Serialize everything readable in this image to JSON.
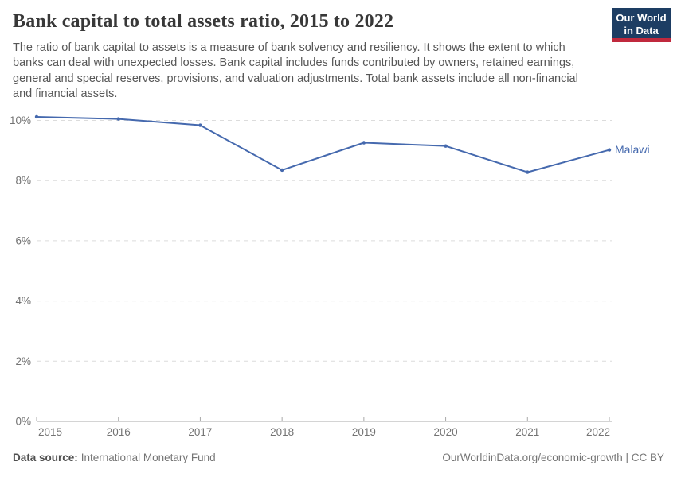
{
  "header": {
    "title": "Bank capital to total assets ratio, 2015 to 2022",
    "subtitle": "The ratio of bank capital to assets is a measure of bank solvency and resiliency. It shows the extent to which banks can deal with unexpected losses. Bank capital includes funds contributed by owners, retained earnings, general and special reserves, provisions, and valuation adjustments. Total bank assets include all non-financial and financial assets.",
    "logo": {
      "line1": "Our World",
      "line2": "in Data",
      "bg_color": "#1d3d63",
      "stripe_color": "#c0293d"
    }
  },
  "chart_data": {
    "type": "line",
    "title": "Bank capital to total assets ratio, 2015 to 2022",
    "x": [
      2015,
      2016,
      2017,
      2018,
      2019,
      2020,
      2021,
      2022
    ],
    "series": [
      {
        "name": "Malawi",
        "color": "#4569ae",
        "values": [
          10.12,
          10.05,
          9.84,
          8.35,
          9.26,
          9.15,
          8.28,
          9.02
        ]
      }
    ],
    "ylabel": "",
    "xlabel": "",
    "ylim": [
      0,
      10.6
    ],
    "y_ticks": [
      0,
      2,
      4,
      6,
      8,
      10
    ],
    "y_tick_suffix": "%",
    "grid": "horizontal-dashed",
    "legend_position": "line-end-label",
    "colors": {
      "gridline": "#dcdcdc",
      "axis": "#a9a9a9",
      "tick_label": "#737373"
    }
  },
  "footer": {
    "source_label": "Data source:",
    "source_value": "International Monetary Fund",
    "credit": "OurWorldinData.org/economic-growth | CC BY"
  }
}
